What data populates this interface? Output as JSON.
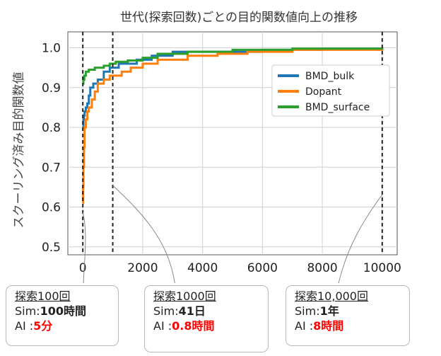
{
  "chart_data": {
    "type": "line",
    "title": "世代(探索回数)ごとの目的関数値向上の推移",
    "xlabel": "",
    "ylabel": "スクーリング済み目的関数値",
    "xlim": [
      -500,
      10500
    ],
    "ylim": [
      0.48,
      1.04
    ],
    "xticks": [
      0,
      2000,
      4000,
      6000,
      8000,
      10000
    ],
    "yticks": [
      0.5,
      0.6,
      0.7,
      0.8,
      0.9,
      1.0
    ],
    "xtick_labels": [
      "0",
      "2000",
      "4000",
      "6000",
      "8000",
      "10000"
    ],
    "ytick_labels": [
      "0.5",
      "0.6",
      "0.7",
      "0.8",
      "0.9",
      "1.0"
    ],
    "grid": true,
    "legend_position": "upper-right",
    "vlines": [
      0,
      1000,
      10000
    ],
    "series": [
      {
        "name": "BMD_bulk",
        "color": "#1f77b4",
        "x": [
          0,
          20,
          40,
          60,
          100,
          150,
          200,
          250,
          350,
          500,
          700,
          900,
          1200,
          1500,
          1800,
          2300,
          3000,
          4500,
          6000,
          8000,
          10000
        ],
        "y": [
          0.8,
          0.82,
          0.83,
          0.84,
          0.85,
          0.86,
          0.88,
          0.9,
          0.91,
          0.92,
          0.94,
          0.95,
          0.96,
          0.96,
          0.97,
          0.98,
          0.99,
          0.99,
          0.995,
          0.998,
          1.0
        ]
      },
      {
        "name": "Dopant",
        "color": "#ff7f0e",
        "x": [
          0,
          10,
          20,
          40,
          60,
          100,
          150,
          200,
          300,
          400,
          500,
          700,
          900,
          1300,
          1600,
          2000,
          2500,
          3500,
          4500,
          5500,
          7000,
          10000
        ],
        "y": [
          0.61,
          0.65,
          0.7,
          0.75,
          0.8,
          0.82,
          0.84,
          0.85,
          0.87,
          0.89,
          0.91,
          0.92,
          0.93,
          0.94,
          0.95,
          0.96,
          0.97,
          0.98,
          0.985,
          0.99,
          0.995,
          1.0
        ]
      },
      {
        "name": "BMD_surface",
        "color": "#2ca02c",
        "x": [
          0,
          20,
          50,
          100,
          200,
          400,
          700,
          900,
          1100,
          1500,
          2000,
          2500,
          3500,
          5000,
          7000,
          10000
        ],
        "y": [
          0.91,
          0.92,
          0.93,
          0.94,
          0.945,
          0.95,
          0.955,
          0.96,
          0.965,
          0.968,
          0.975,
          0.985,
          0.99,
          0.995,
          0.998,
          1.0
        ]
      }
    ]
  },
  "callouts": [
    {
      "header": "探索100回",
      "sim_label": "Sim:",
      "sim_value": "100時間",
      "ai_label": "AI :",
      "ai_value": "5分"
    },
    {
      "header": "探索1000回",
      "sim_label": "Sim:",
      "sim_value": "41日",
      "ai_label": "AI :",
      "ai_value": "0.8時間"
    },
    {
      "header": "探索10,000回",
      "sim_label": "Sim:",
      "sim_value": "1年",
      "ai_label": "AI :",
      "ai_value": "8時間"
    }
  ]
}
